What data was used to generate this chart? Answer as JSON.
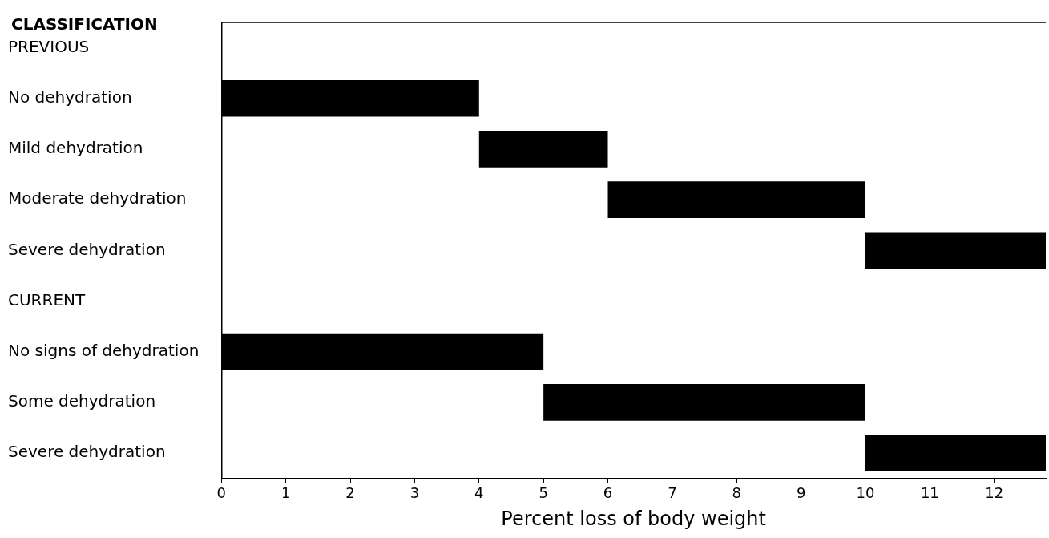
{
  "chart_data": {
    "type": "bar",
    "orientation": "horizontal",
    "ylabel": "CLASSIFICATION",
    "xlabel": "Percent loss of body weight",
    "categories": [
      "PREVIOUS",
      "No dehydration",
      "Mild dehydration",
      "Moderate dehydration",
      "Severe dehydration",
      "CURRENT",
      "No signs of dehydration",
      "Some dehydration",
      "Severe dehydration"
    ],
    "base": [
      null,
      0,
      4,
      6,
      10,
      null,
      0,
      5,
      10
    ],
    "values": [
      null,
      4,
      2,
      4,
      2.8,
      null,
      5,
      5,
      2.8
    ],
    "color": "#000000",
    "xlim": [
      0,
      12.8
    ],
    "xticks": [
      0,
      1,
      2,
      3,
      4,
      5,
      6,
      7,
      8,
      9,
      10,
      11,
      12
    ],
    "grid": false,
    "legend": false
  }
}
